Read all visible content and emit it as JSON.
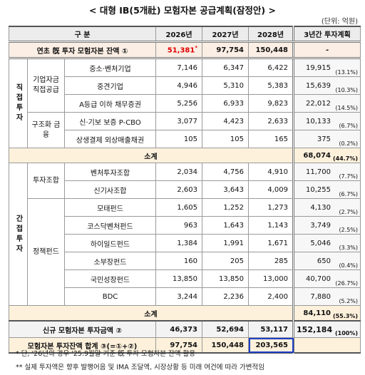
{
  "title": "< 대형 IB(5개社) 모험자본 공급계획(잠정안) >",
  "unit": "(단위: 억원)",
  "table": {
    "header": [
      "구 분",
      "2026년",
      "2027년",
      "2028년",
      "3년간 투자계획"
    ],
    "opening": {
      "label": "연초 旣 투자 모험자본 잔액 ①",
      "values": [
        "51,381",
        "97,754",
        "150,448",
        "-"
      ],
      "note": "*"
    },
    "groups": [
      {
        "label": "직접투자",
        "subgroups": [
          {
            "label": "기업자금 직접공급",
            "rows": [
              {
                "label": "중소·벤처기업",
                "values": [
                  "7,146",
                  "6,347",
                  "6,422"
                ],
                "total": "19,915",
                "share": "(13.1%)"
              },
              {
                "label": "중견기업",
                "values": [
                  "4,946",
                  "5,310",
                  "5,383"
                ],
                "total": "15,639",
                "share": "(10.3%)"
              },
              {
                "label": "A등급 이하 채무증권",
                "values": [
                  "5,256",
                  "6,933",
                  "9,823"
                ],
                "total": "22,012",
                "share": "(14.5%)"
              }
            ]
          },
          {
            "label": "구조화 금융",
            "rows": [
              {
                "label": "신·기보 보증 P-CBO",
                "values": [
                  "3,077",
                  "4,423",
                  "2,633"
                ],
                "total": "10,133",
                "share": "(6.7%)"
              },
              {
                "label": "상생결제 외상매출채권",
                "values": [
                  "105",
                  "105",
                  "165"
                ],
                "total": "375",
                "share": "(0.2%)"
              }
            ]
          }
        ],
        "subtotal": {
          "label": "소계",
          "total": "68,074",
          "share": "(44.7%)"
        }
      },
      {
        "label": "간접투자",
        "subgroups": [
          {
            "label": "투자조합",
            "rows": [
              {
                "label": "벤처투자조합",
                "values": [
                  "2,034",
                  "4,756",
                  "4,910"
                ],
                "total": "11,700",
                "share": "(7.7%)"
              },
              {
                "label": "신기사조합",
                "values": [
                  "2,603",
                  "3,643",
                  "4,009"
                ],
                "total": "10,255",
                "share": "(6.7%)"
              }
            ]
          },
          {
            "label": "정책펀드",
            "rows": [
              {
                "label": "모태펀드",
                "values": [
                  "1,605",
                  "1,252",
                  "1,273"
                ],
                "total": "4,130",
                "share": "(2.7%)"
              },
              {
                "label": "코스닥벤처펀드",
                "values": [
                  "963",
                  "1,643",
                  "1,143"
                ],
                "total": "3,749",
                "share": "(2.5%)"
              },
              {
                "label": "하이일드펀드",
                "values": [
                  "1,384",
                  "1,991",
                  "1,671"
                ],
                "total": "5,046",
                "share": "(3.3%)"
              },
              {
                "label": "소부장펀드",
                "values": [
                  "160",
                  "205",
                  "285"
                ],
                "total": "650",
                "share": "(0.4%)"
              },
              {
                "label": "국민성장펀드",
                "values": [
                  "13,850",
                  "13,850",
                  "13,000"
                ],
                "total": "40,700",
                "share": "(26.7%)"
              },
              {
                "label": "BDC",
                "values": [
                  "3,244",
                  "2,236",
                  "2,400"
                ],
                "total": "7,880",
                "share": "(5.2%)"
              }
            ]
          }
        ],
        "subtotal": {
          "label": "소계",
          "total": "84,110",
          "share": "(55.3%)"
        }
      }
    ],
    "new_investment": {
      "label": "신규 모험자본 투자금액 ②",
      "values": [
        "46,373",
        "52,694",
        "53,117"
      ],
      "total": "152,184",
      "share": "(100%)"
    },
    "balance_total": {
      "label": "모험자본 투자잔액 합계 ③(=①+②)",
      "values": [
        "97,754",
        "150,448",
        "203,565"
      ]
    }
  },
  "footnotes": [
    "* 단, '26년의 경우 '25.9월말 기준 旣 투자 모험자본 잔액 활용",
    "** 실제 투자액은 향후 발행어음 및 IMA 조달액, 시장상황 등 미래 여건에 따라 가변적임"
  ]
}
